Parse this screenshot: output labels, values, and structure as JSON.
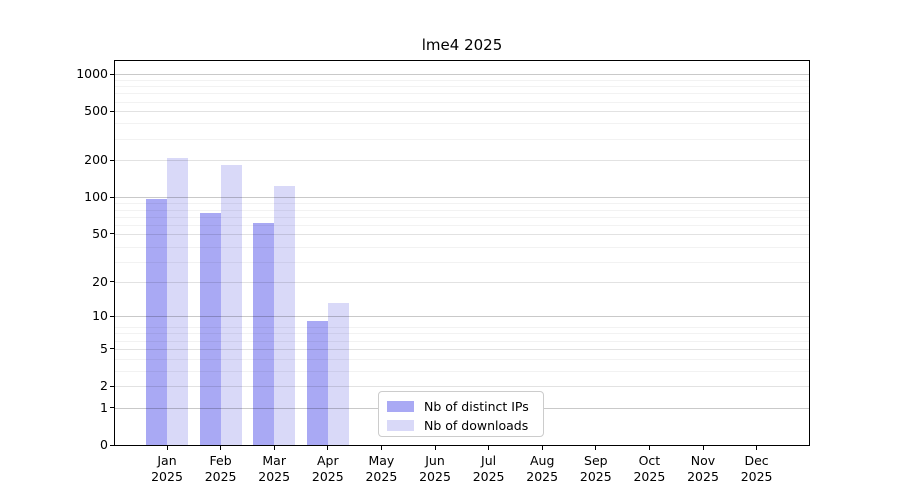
{
  "chart_data": {
    "type": "bar",
    "title": "lme4 2025",
    "categories": [
      "Jan 2025",
      "Feb 2025",
      "Mar 2025",
      "Apr 2025",
      "May 2025",
      "Jun 2025",
      "Jul 2025",
      "Aug 2025",
      "Sep 2025",
      "Oct 2025",
      "Nov 2025",
      "Dec 2025"
    ],
    "x_tick_labels": [
      [
        "Jan",
        "2025"
      ],
      [
        "Feb",
        "2025"
      ],
      [
        "Mar",
        "2025"
      ],
      [
        "Apr",
        "2025"
      ],
      [
        "May",
        "2025"
      ],
      [
        "Jun",
        "2025"
      ],
      [
        "Jul",
        "2025"
      ],
      [
        "Aug",
        "2025"
      ],
      [
        "Sep",
        "2025"
      ],
      [
        "Oct",
        "2025"
      ],
      [
        "Nov",
        "2025"
      ],
      [
        "Dec",
        "2025"
      ]
    ],
    "series": [
      {
        "name": "Nb of distinct IPs",
        "color": "#a9a9f4",
        "values": [
          97,
          74,
          62,
          9,
          null,
          null,
          null,
          null,
          null,
          null,
          null,
          null
        ]
      },
      {
        "name": "Nb of downloads",
        "color": "#d9d9f8",
        "values": [
          207,
          182,
          123,
          13,
          null,
          null,
          null,
          null,
          null,
          null,
          null,
          null
        ]
      }
    ],
    "yscale": "log1p",
    "yticks": [
      0,
      1,
      2,
      5,
      10,
      20,
      50,
      100,
      200,
      500,
      1000
    ],
    "ylim": [
      0,
      1000
    ],
    "grid": true,
    "legend_position": "lower center inside plot",
    "spine_color": "#000000",
    "grid_major_ticks": [
      1,
      10,
      100,
      1000
    ]
  }
}
